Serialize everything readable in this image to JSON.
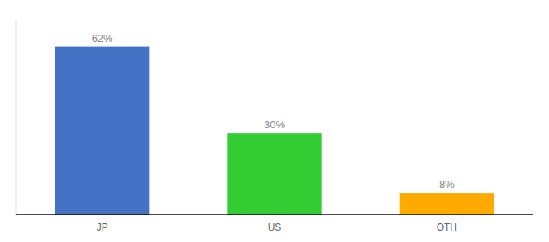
{
  "chart_data": {
    "type": "bar",
    "categories": [
      "JP",
      "US",
      "OTH"
    ],
    "values": [
      62,
      30,
      8
    ],
    "value_labels": [
      "62%",
      "30%",
      "8%"
    ],
    "colors": [
      "#4472c4",
      "#33cc33",
      "#ffaa00"
    ],
    "ylim": [
      0,
      72
    ],
    "data_labels": true,
    "tick_labels": "x",
    "grid": false
  }
}
